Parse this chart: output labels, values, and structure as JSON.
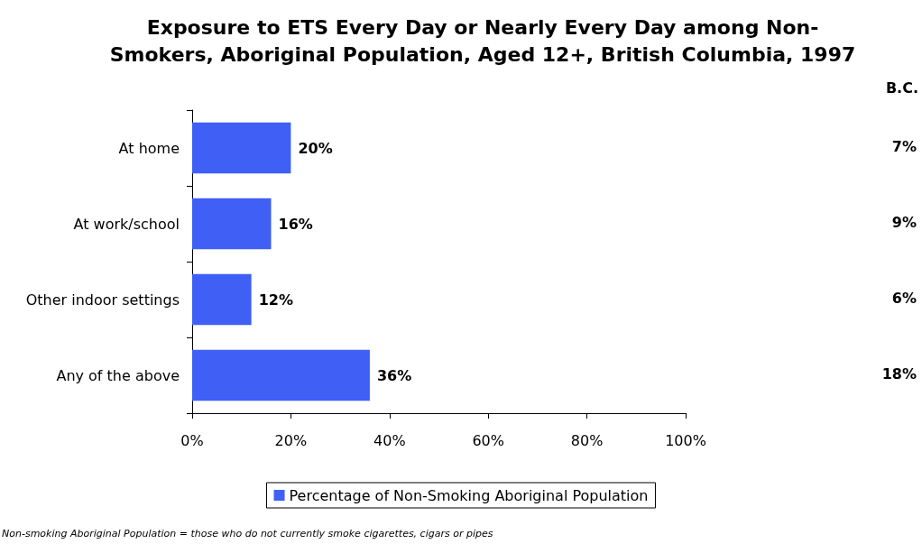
{
  "chart_data": {
    "type": "bar",
    "orientation": "horizontal",
    "title": "Exposure to ETS Every Day or Nearly Every Day among Non-\nSmokers, Aboriginal Population, Aged 12+, British Columbia, 1997",
    "categories": [
      "At home",
      "At work/school",
      "Other indoor settings",
      "Any of the above"
    ],
    "series": [
      {
        "name": "Percentage of Non-Smoking Aboriginal Population",
        "color": "#3f5ff5",
        "values": [
          20,
          16,
          12,
          36
        ],
        "value_labels": [
          "20%",
          "16%",
          "12%",
          "36%"
        ]
      }
    ],
    "xlim": [
      0,
      100
    ],
    "xticks": [
      {
        "value": 0,
        "label": "0%"
      },
      {
        "value": 20,
        "label": "20%"
      },
      {
        "value": 40,
        "label": "40%"
      },
      {
        "value": 60,
        "label": "60%"
      },
      {
        "value": 80,
        "label": "80%"
      },
      {
        "value": 100,
        "label": "100%"
      }
    ],
    "grid": false,
    "legend": "bottom",
    "annotations": [
      "B.C.",
      "7%",
      "9%",
      "6%",
      "18%",
      "Non-smoking Aboriginal Population = those who do not currently smoke cigarettes, cigars or pipes"
    ]
  }
}
